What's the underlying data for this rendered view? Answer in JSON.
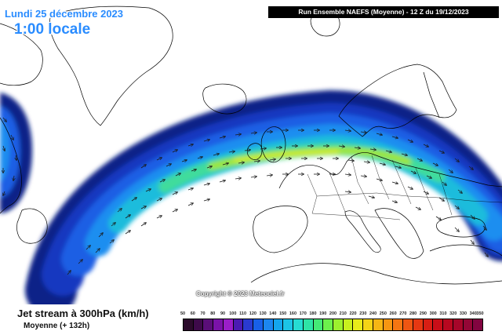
{
  "header": {
    "date_text": "Lundi 25 décembre 2023",
    "time_text": "1:00 locale",
    "run_text": "Run Ensemble NAEFS  (Moyenne)  -  12 Z du 19/12/2023"
  },
  "map": {
    "copyright": "Copyright © 2023 Meteociel.fr",
    "colors": {
      "ocean": "#ffffff",
      "land_outline": "#000000",
      "arrow": "#1a1a1a",
      "jet_edge": "#102a9c",
      "jet_mid": "#1f6ff0",
      "jet_core": "#c8f01e"
    }
  },
  "legend": {
    "title": "Jet stream à 300hPa (km/h)",
    "subtitle": "Moyenne (+ 132h)",
    "scale_values": [
      "50",
      "60",
      "70",
      "80",
      "90",
      "100",
      "110",
      "120",
      "130",
      "140",
      "150",
      "160",
      "170",
      "180",
      "190",
      "200",
      "210",
      "220",
      "230",
      "240",
      "250",
      "260",
      "270",
      "280",
      "290",
      "300",
      "310",
      "320",
      "330",
      "340",
      "350"
    ],
    "scale_colors": [
      "#2b0b2b",
      "#3e0a4a",
      "#5a0e78",
      "#7a12a8",
      "#9a1ec8",
      "#4b1ab2",
      "#2a3ad0",
      "#1860e8",
      "#1c86f0",
      "#14a6ee",
      "#1cc4e6",
      "#26dcd2",
      "#2ee4a6",
      "#44ea76",
      "#6cf04c",
      "#9cf02e",
      "#c8f01e",
      "#e8ec1a",
      "#f4d416",
      "#f6b614",
      "#f69612",
      "#f47612",
      "#ee5612",
      "#e63812",
      "#d81e14",
      "#c80e18",
      "#b80820",
      "#a6062a",
      "#940636",
      "#820440"
    ]
  }
}
